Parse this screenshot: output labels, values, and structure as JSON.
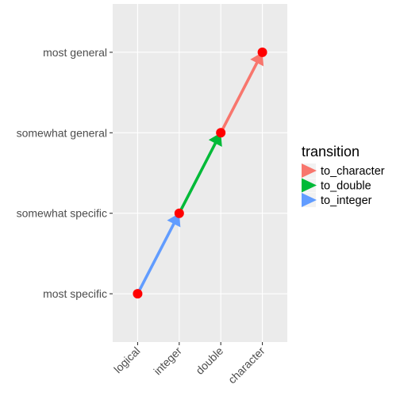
{
  "chart_data": {
    "type": "line",
    "x_categories": [
      "logical",
      "integer",
      "double",
      "character"
    ],
    "y_categories": [
      "most specific",
      "somewhat specific",
      "somewhat general",
      "most general"
    ],
    "points": [
      {
        "x": "logical",
        "y": "most specific"
      },
      {
        "x": "integer",
        "y": "somewhat specific"
      },
      {
        "x": "double",
        "y": "somewhat general"
      },
      {
        "x": "character",
        "y": "most general"
      }
    ],
    "series": [
      {
        "name": "to_character",
        "color": "#F8766D",
        "from": {
          "x": "double",
          "y": "somewhat general"
        },
        "to": {
          "x": "character",
          "y": "most general"
        }
      },
      {
        "name": "to_double",
        "color": "#00BA38",
        "from": {
          "x": "integer",
          "y": "somewhat specific"
        },
        "to": {
          "x": "double",
          "y": "somewhat general"
        }
      },
      {
        "name": "to_integer",
        "color": "#619CFF",
        "from": {
          "x": "logical",
          "y": "most specific"
        },
        "to": {
          "x": "integer",
          "y": "somewhat specific"
        }
      }
    ],
    "point_color": "#FF0000",
    "legend": {
      "title": "transition",
      "position": "right"
    },
    "panel_background": "#EBEBEB",
    "grid": true
  }
}
